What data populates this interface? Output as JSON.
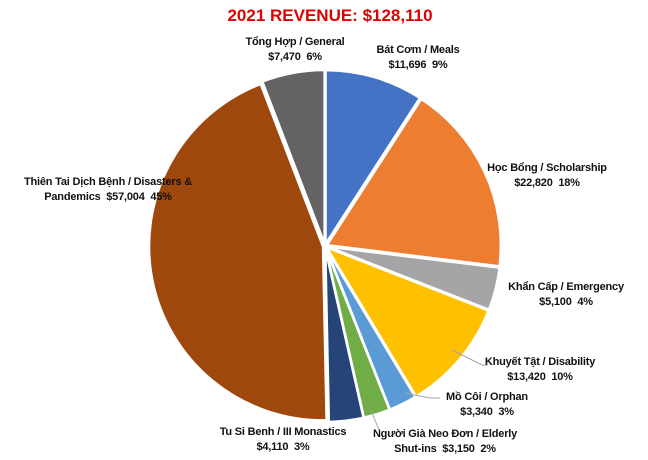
{
  "chart_data": {
    "type": "pie",
    "title": "2021 REVENUE: $128,110",
    "start_angle": "12 o'clock",
    "direction": "clockwise",
    "slices": [
      {
        "name": "Bát Cơm / Meals",
        "value": 11696,
        "value_text": "$11,696",
        "percent_text": "9%",
        "color": "#4472c4"
      },
      {
        "name": "Học Bổng / Scholarship",
        "value": 22820,
        "value_text": "$22,820",
        "percent_text": "18%",
        "color": "#ed7d31"
      },
      {
        "name": "Khẩn Cấp / Emergency",
        "value": 5100,
        "value_text": "$5,100",
        "percent_text": "4%",
        "color": "#a5a5a5"
      },
      {
        "name": "Khuyết Tật / Disability",
        "value": 13420,
        "value_text": "$13,420",
        "percent_text": "10%",
        "color": "#ffc000"
      },
      {
        "name": "Mồ Côi / Orphan",
        "value": 3340,
        "value_text": "$3,340",
        "percent_text": "3%",
        "color": "#5b9bd5"
      },
      {
        "name": "Người Già Neo Đơn / Elderly Shut-ins",
        "value": 3150,
        "value_text": "$3,150",
        "percent_text": "2%",
        "color": "#70ad47"
      },
      {
        "name": "Tu Si Benh / III Monastics",
        "value": 4110,
        "value_text": "$4,110",
        "percent_text": "3%",
        "color": "#264478"
      },
      {
        "name": "Thiên Tai Dịch Bệnh / Disasters & Pandemics",
        "value": 57004,
        "value_text": "$57,004",
        "percent_text": "45%",
        "color": "#9e480e"
      },
      {
        "name": "Tổng Hợp / General",
        "value": 7470,
        "value_text": "$7,470",
        "percent_text": "6%",
        "color": "#636363"
      }
    ]
  }
}
